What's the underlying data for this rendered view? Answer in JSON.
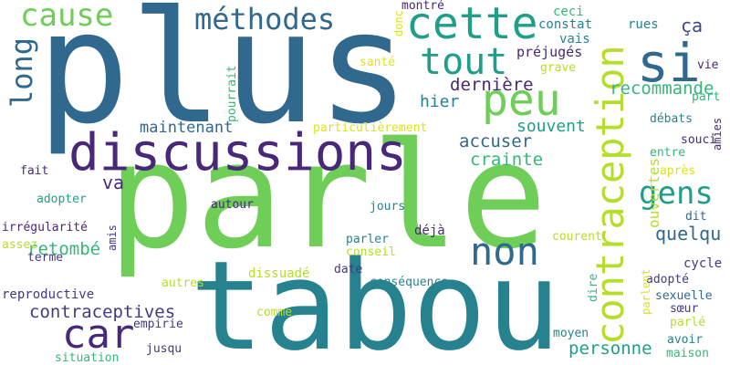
{
  "palette": {
    "dark_blue": "#31688e",
    "purple": "#482878",
    "teal": "#26828e",
    "green_teal": "#1f9e89",
    "green": "#35b779",
    "light_green": "#6ece58",
    "lime": "#b5de2b",
    "yellow": "#dde318",
    "gray_blue": "#3e4a89",
    "indigo": "#443983"
  },
  "words": [
    {
      "id": "plus",
      "text": "plus",
      "color": "dark_blue",
      "orientation": "horizontal"
    },
    {
      "id": "parle",
      "text": "parle",
      "color": "light_green",
      "orientation": "horizontal"
    },
    {
      "id": "tabou",
      "text": "tabou",
      "color": "teal",
      "orientation": "horizontal"
    },
    {
      "id": "discussions",
      "text": "discussions",
      "color": "purple",
      "orientation": "horizontal"
    },
    {
      "id": "contraception",
      "text": "contraception",
      "color": "lime",
      "orientation": "vertical"
    },
    {
      "id": "si",
      "text": "si",
      "color": "dark_blue",
      "orientation": "horizontal"
    },
    {
      "id": "cette",
      "text": "cette",
      "color": "green_teal",
      "orientation": "horizontal"
    },
    {
      "id": "methodes",
      "text": "méthodes",
      "color": "dark_blue",
      "orientation": "horizontal"
    },
    {
      "id": "cause",
      "text": "cause",
      "color": "light_green",
      "orientation": "horizontal"
    },
    {
      "id": "long",
      "text": "long",
      "color": "dark_blue",
      "orientation": "vertical"
    },
    {
      "id": "tout",
      "text": "tout",
      "color": "green_teal",
      "orientation": "horizontal"
    },
    {
      "id": "peu",
      "text": "peu",
      "color": "light_green",
      "orientation": "horizontal"
    },
    {
      "id": "non",
      "text": "non",
      "color": "dark_blue",
      "orientation": "horizontal"
    },
    {
      "id": "car",
      "text": "car",
      "color": "purple",
      "orientation": "horizontal"
    },
    {
      "id": "gens",
      "text": "gens",
      "color": "green_teal",
      "orientation": "horizontal"
    },
    {
      "id": "maintenant",
      "text": "maintenant",
      "color": "dark_blue",
      "orientation": "horizontal"
    },
    {
      "id": "contraceptives",
      "text": "contraceptives",
      "color": "indigo",
      "orientation": "horizontal"
    },
    {
      "id": "derniere",
      "text": "dernière",
      "color": "purple",
      "orientation": "horizontal"
    },
    {
      "id": "recommande",
      "text": "recommande",
      "color": "green",
      "orientation": "horizontal"
    },
    {
      "id": "ca",
      "text": "ça",
      "color": "gray_blue",
      "orientation": "horizontal"
    },
    {
      "id": "hier",
      "text": "hier",
      "color": "teal",
      "orientation": "horizontal"
    },
    {
      "id": "souvent",
      "text": "souvent",
      "color": "green_teal",
      "orientation": "horizontal"
    },
    {
      "id": "accuser",
      "text": "accuser",
      "color": "dark_blue",
      "orientation": "horizontal"
    },
    {
      "id": "crainte",
      "text": "crainte",
      "color": "green",
      "orientation": "horizontal"
    },
    {
      "id": "quelqu",
      "text": "quelqu",
      "color": "dark_blue",
      "orientation": "horizontal"
    },
    {
      "id": "retombe",
      "text": "retombé",
      "color": "green",
      "orientation": "horizontal"
    },
    {
      "id": "personne",
      "text": "personne",
      "color": "green_teal",
      "orientation": "horizontal"
    },
    {
      "id": "ouvertes",
      "text": "ouvertes",
      "color": "lime",
      "orientation": "vertical"
    },
    {
      "id": "va",
      "text": "va",
      "color": "purple",
      "orientation": "horizontal"
    },
    {
      "id": "montre",
      "text": "montré",
      "color": "purple",
      "orientation": "horizontal"
    },
    {
      "id": "ceci",
      "text": "ceci",
      "color": "green",
      "orientation": "horizontal"
    },
    {
      "id": "constat",
      "text": "constat",
      "color": "teal",
      "orientation": "horizontal"
    },
    {
      "id": "vais",
      "text": "vais",
      "color": "teal",
      "orientation": "horizontal"
    },
    {
      "id": "rues",
      "text": "rues",
      "color": "teal",
      "orientation": "horizontal"
    },
    {
      "id": "prejuges",
      "text": "préjugés",
      "color": "purple",
      "orientation": "horizontal"
    },
    {
      "id": "grave",
      "text": "grave",
      "color": "lime",
      "orientation": "horizontal"
    },
    {
      "id": "sante",
      "text": "santé",
      "color": "yellow",
      "orientation": "horizontal"
    },
    {
      "id": "donc",
      "text": "donc",
      "color": "yellow",
      "orientation": "vertical"
    },
    {
      "id": "pourrait",
      "text": "pourrait",
      "color": "green",
      "orientation": "vertical"
    },
    {
      "id": "vie",
      "text": "vie",
      "color": "purple",
      "orientation": "horizontal"
    },
    {
      "id": "part",
      "text": "part",
      "color": "green",
      "orientation": "horizontal"
    },
    {
      "id": "debats",
      "text": "débats",
      "color": "teal",
      "orientation": "horizontal"
    },
    {
      "id": "particulierement",
      "text": "particulièrement",
      "color": "yellow",
      "orientation": "horizontal"
    },
    {
      "id": "souci",
      "text": "souci",
      "color": "purple",
      "orientation": "horizontal"
    },
    {
      "id": "amies",
      "text": "amies",
      "color": "purple",
      "orientation": "vertical"
    },
    {
      "id": "entre",
      "text": "entre",
      "color": "green",
      "orientation": "horizontal"
    },
    {
      "id": "apres",
      "text": "après",
      "color": "yellow",
      "orientation": "horizontal"
    },
    {
      "id": "fait",
      "text": "fait",
      "color": "purple",
      "orientation": "horizontal"
    },
    {
      "id": "adopter",
      "text": "adopter",
      "color": "green_teal",
      "orientation": "horizontal"
    },
    {
      "id": "jours",
      "text": "jours",
      "color": "teal",
      "orientation": "horizontal"
    },
    {
      "id": "autour",
      "text": "autour",
      "color": "purple",
      "orientation": "horizontal"
    },
    {
      "id": "dit",
      "text": "dit",
      "color": "dark_blue",
      "orientation": "horizontal"
    },
    {
      "id": "irregularite",
      "text": "irrégularité",
      "color": "purple",
      "orientation": "horizontal"
    },
    {
      "id": "assez",
      "text": "assez",
      "color": "lime",
      "orientation": "horizontal"
    },
    {
      "id": "terme",
      "text": "terme",
      "color": "indigo",
      "orientation": "horizontal"
    },
    {
      "id": "amis",
      "text": "amis",
      "color": "indigo",
      "orientation": "vertical"
    },
    {
      "id": "parler",
      "text": "parler",
      "color": "teal",
      "orientation": "horizontal"
    },
    {
      "id": "deja",
      "text": "déjà",
      "color": "purple",
      "orientation": "horizontal"
    },
    {
      "id": "conseil",
      "text": "conseil",
      "color": "lime",
      "orientation": "horizontal"
    },
    {
      "id": "courent",
      "text": "courent",
      "color": "lime",
      "orientation": "horizontal"
    },
    {
      "id": "date",
      "text": "date",
      "color": "indigo",
      "orientation": "horizontal"
    },
    {
      "id": "dissuade",
      "text": "dissuadé",
      "color": "lime",
      "orientation": "horizontal"
    },
    {
      "id": "consequence",
      "text": "conséquence",
      "color": "teal",
      "orientation": "horizontal"
    },
    {
      "id": "autres",
      "text": "autres",
      "color": "lime",
      "orientation": "horizontal"
    },
    {
      "id": "reproductive",
      "text": "reproductive",
      "color": "indigo",
      "orientation": "horizontal"
    },
    {
      "id": "cycle",
      "text": "cycle",
      "color": "indigo",
      "orientation": "horizontal"
    },
    {
      "id": "adopte",
      "text": "adopté",
      "color": "indigo",
      "orientation": "horizontal"
    },
    {
      "id": "dire",
      "text": "dire",
      "color": "green",
      "orientation": "vertical"
    },
    {
      "id": "parlent",
      "text": "parlent",
      "color": "yellow",
      "orientation": "vertical"
    },
    {
      "id": "sexuelle",
      "text": "sexuelle",
      "color": "dark_blue",
      "orientation": "horizontal"
    },
    {
      "id": "soeur",
      "text": "sœur",
      "color": "indigo",
      "orientation": "horizontal"
    },
    {
      "id": "comme",
      "text": "comme",
      "color": "lime",
      "orientation": "horizontal"
    },
    {
      "id": "empirie",
      "text": "empirie",
      "color": "indigo",
      "orientation": "horizontal"
    },
    {
      "id": "parle2",
      "text": "parlé",
      "color": "lime",
      "orientation": "horizontal"
    },
    {
      "id": "moyen",
      "text": "moyen",
      "color": "teal",
      "orientation": "horizontal"
    },
    {
      "id": "jusqu",
      "text": "jusqu",
      "color": "indigo",
      "orientation": "horizontal"
    },
    {
      "id": "avoir",
      "text": "avoir",
      "color": "teal",
      "orientation": "horizontal"
    },
    {
      "id": "situation",
      "text": "situation",
      "color": "green",
      "orientation": "horizontal"
    },
    {
      "id": "maison",
      "text": "maison",
      "color": "green",
      "orientation": "horizontal"
    }
  ]
}
